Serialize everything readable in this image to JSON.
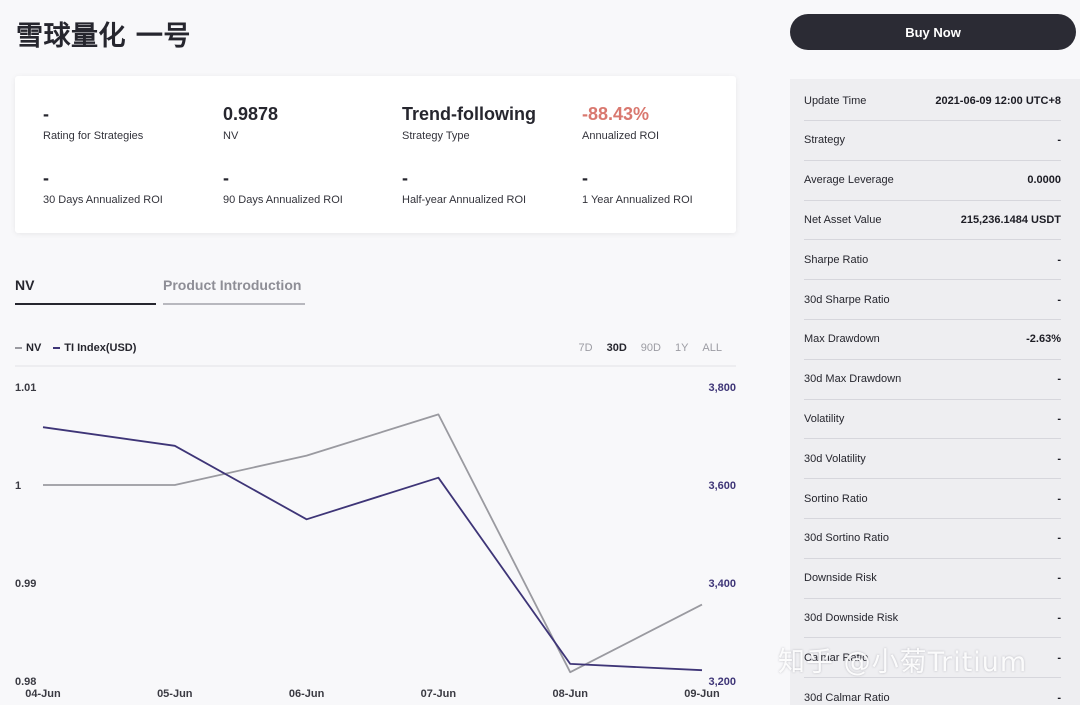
{
  "header": {
    "title": "雪球量化 一号",
    "buy_label": "Buy Now"
  },
  "metrics": [
    {
      "value": "-",
      "label": "Rating for Strategies",
      "negative": false
    },
    {
      "value": "0.9878",
      "label": "NV",
      "negative": false
    },
    {
      "value": "Trend-following",
      "label": "Strategy Type",
      "negative": false
    },
    {
      "value": "-88.43%",
      "label": "Annualized ROI",
      "negative": true
    },
    {
      "value": "-",
      "label": "30 Days Annualized ROI",
      "negative": false
    },
    {
      "value": "-",
      "label": "90 Days Annualized ROI",
      "negative": false
    },
    {
      "value": "-",
      "label": "Half-year Annualized ROI",
      "negative": false
    },
    {
      "value": "-",
      "label": "1 Year Annualized ROI",
      "negative": false
    }
  ],
  "tabs": [
    {
      "label": "NV",
      "active": true
    },
    {
      "label": "Product Introduction",
      "active": false
    }
  ],
  "legend": [
    {
      "label": "NV",
      "color": "#9a9aa0"
    },
    {
      "label": "TI Index(USD)",
      "color": "#3e3577"
    }
  ],
  "periods": [
    {
      "label": "7D",
      "active": false
    },
    {
      "label": "30D",
      "active": true
    },
    {
      "label": "90D",
      "active": false
    },
    {
      "label": "1Y",
      "active": false
    },
    {
      "label": "ALL",
      "active": false
    }
  ],
  "chart_data": {
    "type": "line",
    "x": [
      "04-Jun",
      "05-Jun",
      "06-Jun",
      "07-Jun",
      "08-Jun",
      "09-Jun"
    ],
    "series": [
      {
        "name": "NV",
        "axis": "left",
        "color": "#9a9aa0",
        "values": [
          1.0,
          1.0,
          1.003,
          1.0072,
          0.9809,
          0.9878
        ]
      },
      {
        "name": "TI Index(USD)",
        "axis": "right",
        "color": "#3e3577",
        "values": [
          3718,
          3680,
          3530,
          3615,
          3235,
          3222
        ]
      }
    ],
    "y_left": {
      "ticks": [
        "1.01",
        "1",
        "0.99",
        "0.98"
      ],
      "tick_values": [
        1.01,
        1.0,
        0.99,
        0.98
      ],
      "range": [
        0.98,
        1.01
      ]
    },
    "y_right": {
      "ticks": [
        "3,800",
        "3,600",
        "3,400",
        "3,200"
      ],
      "tick_values": [
        3800,
        3600,
        3400,
        3200
      ],
      "range": [
        3200,
        3800
      ],
      "color": "#3e3577"
    },
    "grid": false
  },
  "side_panel": [
    {
      "key": "Update Time",
      "value": "2021-06-09 12:00 UTC+8"
    },
    {
      "key": "Strategy",
      "value": "-"
    },
    {
      "key": "Average Leverage",
      "value": "0.0000"
    },
    {
      "key": "Net Asset Value",
      "value": "215,236.1484 USDT"
    },
    {
      "key": "Sharpe Ratio",
      "value": "-"
    },
    {
      "key": "30d Sharpe Ratio",
      "value": "-"
    },
    {
      "key": "Max Drawdown",
      "value": "-2.63%"
    },
    {
      "key": "30d Max Drawdown",
      "value": "-"
    },
    {
      "key": "Volatility",
      "value": "-"
    },
    {
      "key": "30d Volatility",
      "value": "-"
    },
    {
      "key": "Sortino Ratio",
      "value": "-"
    },
    {
      "key": "30d Sortino Ratio",
      "value": "-"
    },
    {
      "key": "Downside Risk",
      "value": "-"
    },
    {
      "key": "30d Downside Risk",
      "value": "-"
    },
    {
      "key": "Calmar Ratio",
      "value": "-"
    },
    {
      "key": "30d Calmar Ratio",
      "value": "-"
    }
  ],
  "watermark": "知乎 @小菊Tritium"
}
